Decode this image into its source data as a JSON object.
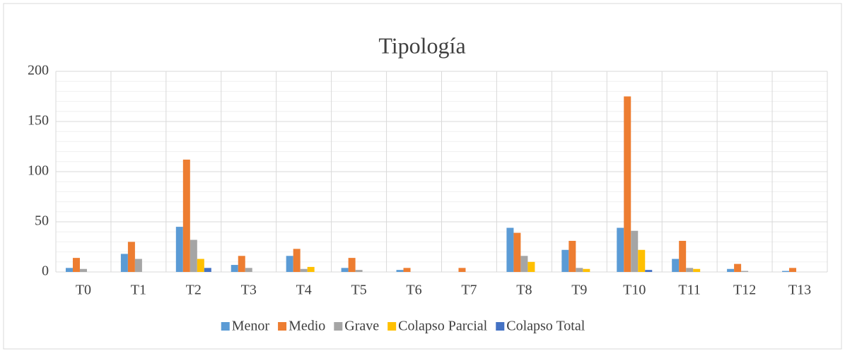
{
  "chart_data": {
    "type": "bar",
    "title": "Tipología",
    "categories": [
      "T0",
      "T1",
      "T2",
      "T3",
      "T4",
      "T5",
      "T6",
      "T7",
      "T8",
      "T9",
      "T10",
      "T11",
      "T12",
      "T13"
    ],
    "series": [
      {
        "name": "Menor",
        "color": "#5b9bd5",
        "values": [
          4,
          18,
          45,
          7,
          16,
          4,
          2,
          0,
          44,
          22,
          44,
          13,
          3,
          1
        ]
      },
      {
        "name": "Medio",
        "color": "#ed7d31",
        "values": [
          14,
          30,
          112,
          16,
          23,
          14,
          4,
          4,
          39,
          31,
          175,
          31,
          8,
          4
        ]
      },
      {
        "name": "Grave",
        "color": "#a5a5a5",
        "values": [
          3,
          13,
          32,
          4,
          3,
          2,
          0,
          0,
          16,
          4,
          41,
          4,
          1,
          0
        ]
      },
      {
        "name": "Colapso Parcial",
        "color": "#ffc000",
        "values": [
          0,
          0,
          13,
          0,
          5,
          0,
          0,
          0,
          10,
          3,
          22,
          3,
          0,
          0
        ]
      },
      {
        "name": "Colapso Total",
        "color": "#4472c4",
        "values": [
          0,
          0,
          4,
          0,
          0,
          0,
          0,
          0,
          0,
          0,
          2,
          0,
          0,
          0
        ]
      }
    ],
    "ylim": [
      0,
      200
    ],
    "yticks": [
      0,
      50,
      100,
      150,
      200
    ],
    "yminorticks": [
      10,
      20,
      30,
      40,
      60,
      70,
      80,
      90,
      110,
      120,
      130,
      140,
      160,
      170,
      180,
      190
    ],
    "grid": true,
    "legend": "bottom"
  }
}
